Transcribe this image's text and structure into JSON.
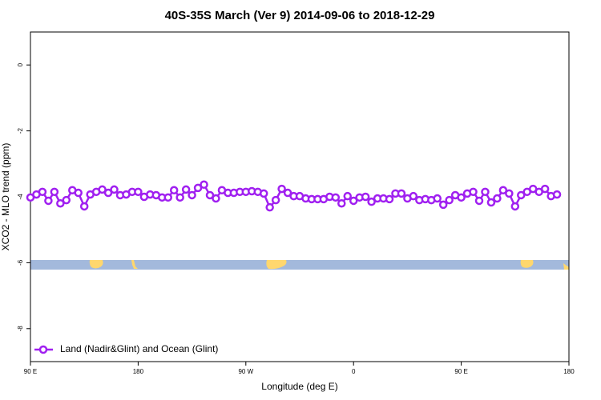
{
  "chart_data": {
    "type": "line",
    "title": "40S-35S March (Ver 9)   2014-09-06 to 2018-12-29",
    "xlabel": "Longitude (deg E)",
    "ylabel": "XCO2 - MLO trend (ppm)",
    "xlim": [
      90,
      540
    ],
    "ylim": [
      -9,
      1
    ],
    "xticks": [
      {
        "value": 90,
        "label": "90 E"
      },
      180,
      {
        "value": 270,
        "label": "90 W"
      },
      {
        "value": 360,
        "label": "0"
      },
      {
        "value": 450,
        "label": "90 E"
      },
      {
        "value": 540,
        "label": "180"
      }
    ],
    "yticks": [
      0,
      -2,
      -4,
      -6,
      -8
    ],
    "legend": "bottom-left",
    "x": [
      90,
      95,
      100,
      105,
      110,
      115,
      120,
      125,
      130,
      135,
      140,
      145,
      150,
      155,
      160,
      165,
      170,
      175,
      180,
      185,
      190,
      195,
      200,
      205,
      210,
      215,
      220,
      225,
      230,
      235,
      240,
      245,
      250,
      255,
      260,
      265,
      270,
      275,
      280,
      285,
      290,
      295,
      300,
      305,
      310,
      315,
      320,
      325,
      330,
      335,
      340,
      345,
      350,
      355,
      360,
      365,
      370,
      375,
      380,
      385,
      390,
      395,
      400,
      405,
      410,
      415,
      420,
      425,
      430,
      435,
      440,
      445,
      450,
      455,
      460,
      465,
      470,
      475,
      480,
      485,
      490,
      495,
      500,
      505,
      510,
      515,
      520,
      525,
      530
    ],
    "series": [
      {
        "name": "Land (Nadir&Glint) and Ocean (Glint)",
        "color": "#a020f0",
        "values": [
          -4.02,
          -3.93,
          -3.85,
          -4.12,
          -3.85,
          -4.2,
          -4.1,
          -3.8,
          -3.88,
          -4.29,
          -3.93,
          -3.85,
          -3.78,
          -3.88,
          -3.78,
          -3.95,
          -3.93,
          -3.85,
          -3.85,
          -4.0,
          -3.93,
          -3.95,
          -4.02,
          -4.02,
          -3.8,
          -4.02,
          -3.78,
          -3.95,
          -3.73,
          -3.63,
          -3.95,
          -4.05,
          -3.8,
          -3.88,
          -3.88,
          -3.85,
          -3.85,
          -3.83,
          -3.85,
          -3.9,
          -4.32,
          -4.1,
          -3.76,
          -3.88,
          -3.98,
          -3.98,
          -4.05,
          -4.07,
          -4.07,
          -4.07,
          -4.0,
          -4.02,
          -4.2,
          -3.98,
          -4.12,
          -4.02,
          -4.0,
          -4.15,
          -4.05,
          -4.05,
          -4.07,
          -3.9,
          -3.9,
          -4.05,
          -3.98,
          -4.1,
          -4.07,
          -4.1,
          -4.05,
          -4.24,
          -4.1,
          -3.95,
          -4.02,
          -3.9,
          -3.85,
          -4.12,
          -3.85,
          -4.17,
          -4.05,
          -3.8,
          -3.9,
          -4.29,
          -3.95,
          -3.85,
          -3.76,
          -3.85,
          -3.76,
          -3.98,
          -3.93
        ]
      }
    ]
  }
}
